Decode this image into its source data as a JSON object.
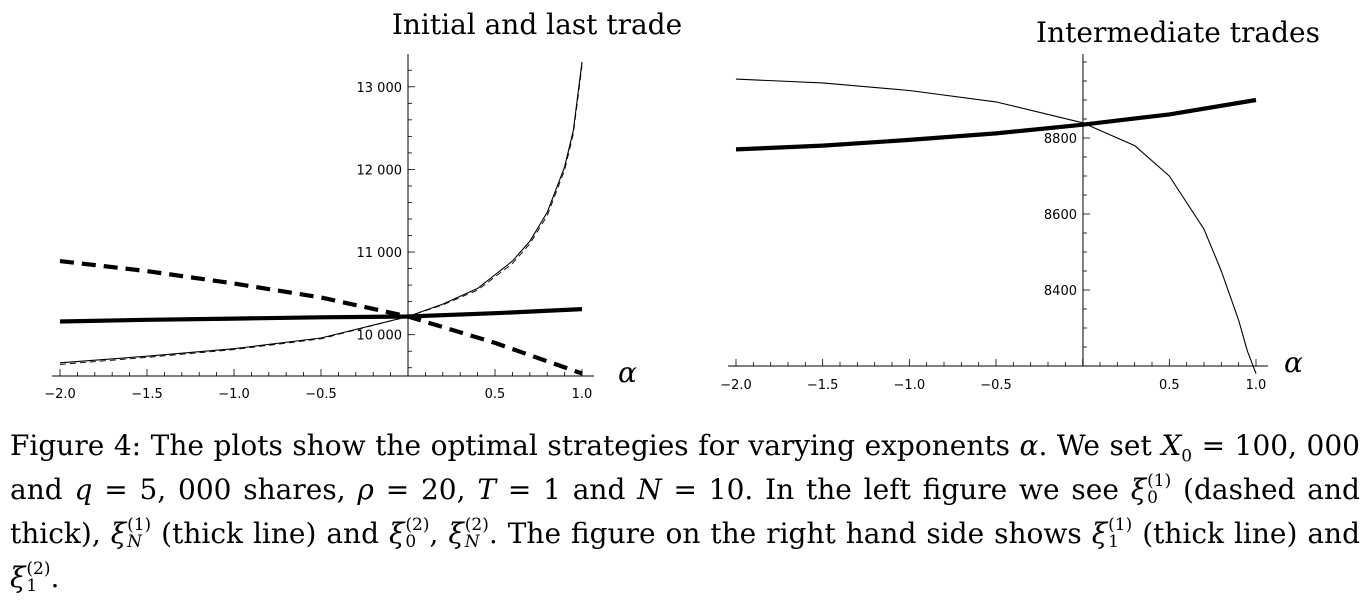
{
  "chart_data": [
    {
      "type": "line",
      "title": "Initial and last trade",
      "xlabel": "α",
      "ylabel": "",
      "xlim": [
        -2.0,
        1.0
      ],
      "ylim": [
        9500,
        13300
      ],
      "x_ticks": [
        "−2.0",
        "−1.5",
        "−1.0",
        "−0.5",
        "0.5",
        "1.0"
      ],
      "y_ticks": [
        "10 000",
        "11 000",
        "12 000",
        "13 000"
      ],
      "grid": false,
      "series": [
        {
          "style": "dashed-thick",
          "x": [
            -2.0,
            -1.5,
            -1.0,
            -0.5,
            0.0,
            0.5,
            1.0
          ],
          "values": [
            10890,
            10770,
            10620,
            10450,
            10220,
            9900,
            9530
          ]
        },
        {
          "style": "thick",
          "x": [
            -2.0,
            -1.5,
            -1.0,
            -0.5,
            0.0,
            0.5,
            1.0
          ],
          "values": [
            10160,
            10180,
            10195,
            10210,
            10220,
            10260,
            10310
          ]
        },
        {
          "style": "thin",
          "x": [
            -2.0,
            -1.5,
            -1.0,
            -0.5,
            0.0,
            0.2,
            0.4,
            0.6,
            0.7,
            0.8,
            0.9,
            0.95,
            1.0
          ],
          "values": [
            9660,
            9740,
            9830,
            9960,
            10220,
            10370,
            10560,
            10890,
            11130,
            11480,
            12030,
            12470,
            13300
          ]
        },
        {
          "style": "thin-dashed",
          "x": [
            -2.0,
            -1.5,
            -1.0,
            -0.5,
            0.0,
            0.2,
            0.4,
            0.6,
            0.7,
            0.8,
            0.9,
            0.95,
            1.0
          ],
          "values": [
            9640,
            9725,
            9820,
            9950,
            10220,
            10360,
            10540,
            10860,
            11100,
            11440,
            11990,
            12430,
            13250
          ]
        }
      ]
    },
    {
      "type": "line",
      "title": "Intermediate trades",
      "xlabel": "α",
      "ylabel": "",
      "xlim": [
        -2.0,
        1.0
      ],
      "ylim": [
        8200,
        9000
      ],
      "x_ticks": [
        "−2.0",
        "−1.5",
        "−1.0",
        "−0.5",
        "0.5",
        "1.0"
      ],
      "y_ticks": [
        "8400",
        "8600",
        "8800"
      ],
      "grid": false,
      "series": [
        {
          "style": "thick",
          "x": [
            -2.0,
            -1.5,
            -1.0,
            -0.5,
            0.0,
            0.5,
            1.0
          ],
          "values": [
            8770,
            8780,
            8795,
            8812,
            8835,
            8862,
            8900
          ]
        },
        {
          "style": "thin",
          "x": [
            -2.0,
            -1.5,
            -1.0,
            -0.5,
            0.0,
            0.3,
            0.5,
            0.7,
            0.8,
            0.9,
            0.95,
            1.0
          ],
          "values": [
            8955,
            8945,
            8925,
            8895,
            8840,
            8780,
            8700,
            8560,
            8450,
            8320,
            8240,
            8180
          ]
        }
      ]
    }
  ],
  "caption": {
    "t1": "Figure 4: The plots show the optimal strategies for varying exponents",
    "alpha": "α",
    "t2": ". We set",
    "X": "X",
    "X_sub": "0",
    "t3": "= 100, 000 and",
    "q": "q",
    "t4": "= 5, 000 shares,",
    "rho": "ρ",
    "t5": "= 20,",
    "T": "T",
    "t6": "= 1 and",
    "N": "N",
    "t7": "= 10. In the left figure we see",
    "xi": "ξ",
    "sup1": "(1)",
    "sup2": "(2)",
    "sub0": "0",
    "subN": "N",
    "sub1": "1",
    "t8": "(dashed and thick),",
    "t9": "(thick line) and",
    "comma": ",",
    "t10": ". The figure on the right hand side shows",
    "t11": "(thick line) and",
    "t12": "."
  }
}
